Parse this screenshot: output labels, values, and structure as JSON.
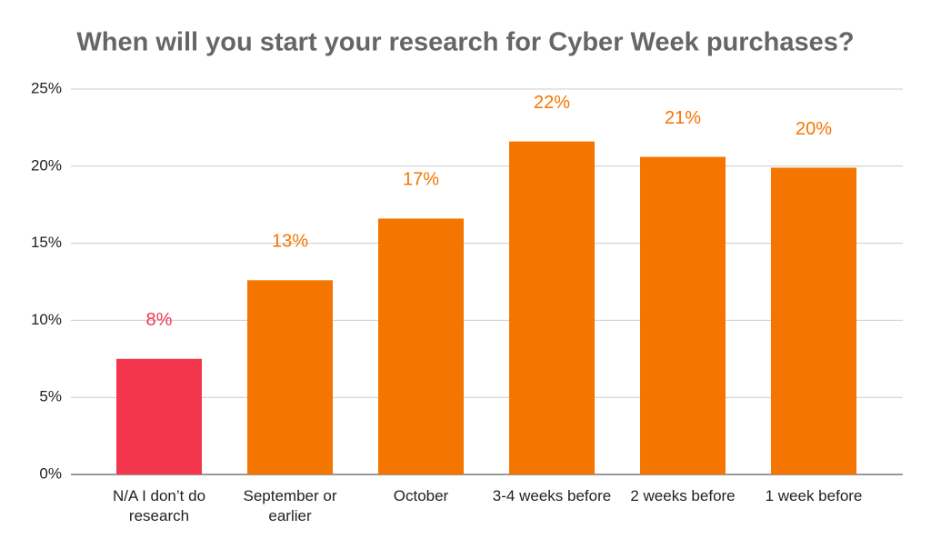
{
  "chart_data": {
    "type": "bar",
    "title": "When will you start your research for Cyber Week purchases?",
    "categories": [
      "N/A I don’t do research",
      "September or earlier",
      "October",
      "3-4 weeks before",
      "2 weeks before",
      "1 week before"
    ],
    "values": [
      7.5,
      12.6,
      16.6,
      21.6,
      20.6,
      19.9
    ],
    "value_labels": [
      "8%",
      "13%",
      "17%",
      "22%",
      "21%",
      "20%"
    ],
    "colors": [
      "#f4364c",
      "#f47500",
      "#f47500",
      "#f47500",
      "#f47500",
      "#f47500"
    ],
    "ylim": [
      0,
      25
    ],
    "yticks": [
      {
        "value": 0,
        "label": "0%"
      },
      {
        "value": 5,
        "label": "5%"
      },
      {
        "value": 10,
        "label": "10%"
      },
      {
        "value": 15,
        "label": "15%"
      },
      {
        "value": 20,
        "label": "20%"
      },
      {
        "value": 25,
        "label": "25%"
      }
    ],
    "grid": true
  }
}
